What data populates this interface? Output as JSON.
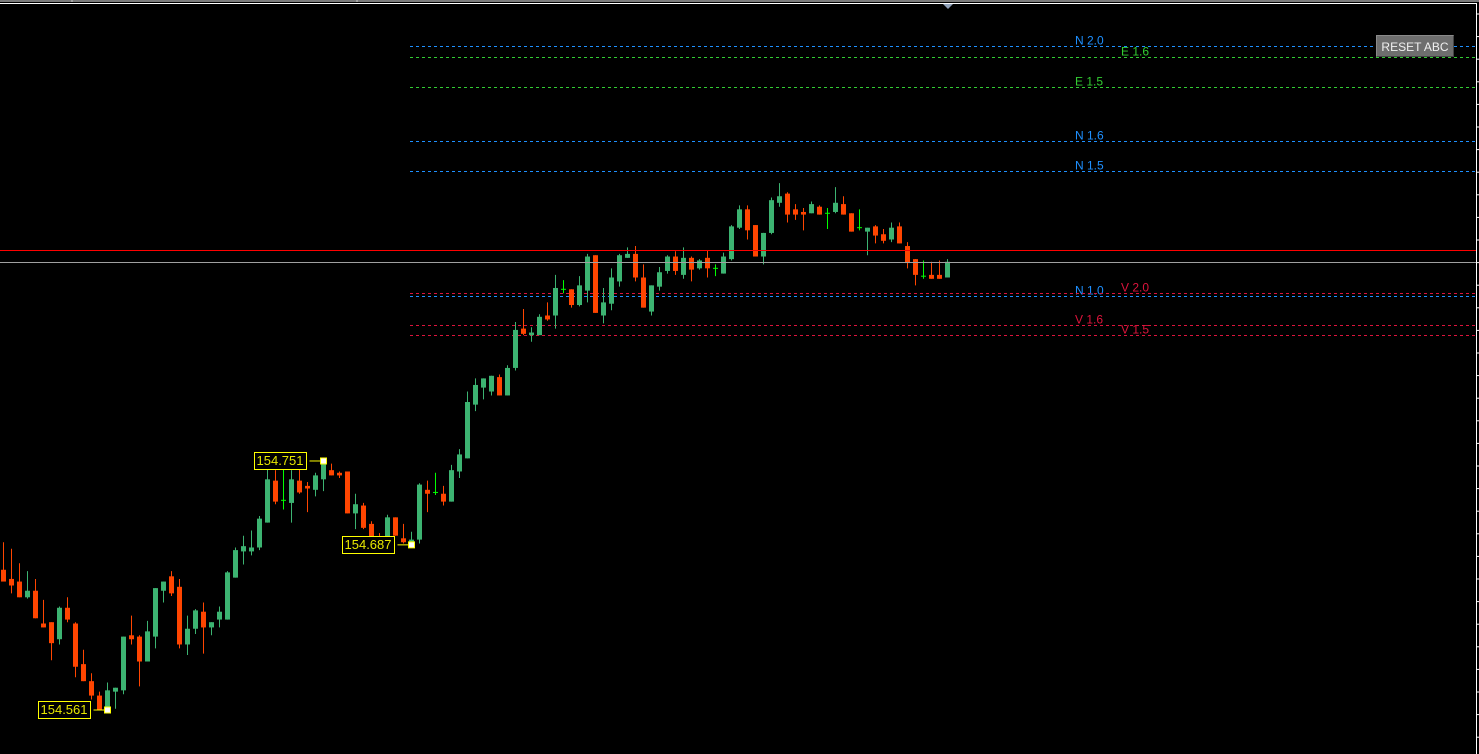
{
  "chart_data": {
    "type": "candlestick",
    "title": "",
    "xlabel": "",
    "ylabel": "",
    "ylim": [
      154.555,
      155.105
    ],
    "grid": false,
    "colors": {
      "bull": "#3cb371",
      "bear": "#ff4500",
      "doji": "#00ff00",
      "background": "#000000",
      "ask_line": "#ff0000",
      "bid_line": "#a0a0a0"
    },
    "candles_ohlc": [
      [
        154.668,
        154.689,
        154.659,
        154.659
      ],
      [
        154.661,
        154.684,
        154.65,
        154.656
      ],
      [
        154.659,
        154.673,
        154.647,
        154.647
      ],
      [
        154.647,
        154.667,
        154.646,
        154.652
      ],
      [
        154.652,
        154.661,
        154.631,
        154.631
      ],
      [
        154.627,
        154.645,
        154.624,
        154.624
      ],
      [
        154.628,
        154.628,
        154.599,
        154.612
      ],
      [
        154.615,
        154.64,
        154.611,
        154.639
      ],
      [
        154.639,
        154.647,
        154.628,
        154.63
      ],
      [
        154.627,
        154.628,
        154.586,
        154.594
      ],
      [
        154.596,
        154.607,
        154.583,
        154.583
      ],
      [
        154.583,
        154.589,
        154.569,
        154.572
      ],
      [
        154.572,
        154.575,
        154.561,
        154.561
      ],
      [
        154.563,
        154.582,
        154.561,
        154.576
      ],
      [
        154.575,
        154.578,
        154.562,
        154.578
      ],
      [
        154.576,
        154.617,
        154.573,
        154.617
      ],
      [
        154.618,
        154.633,
        154.611,
        154.615
      ],
      [
        154.617,
        154.618,
        154.579,
        154.598
      ],
      [
        154.598,
        154.629,
        154.598,
        154.621
      ],
      [
        154.617,
        154.654,
        154.608,
        154.654
      ],
      [
        154.652,
        154.659,
        154.643,
        154.659
      ],
      [
        154.663,
        154.667,
        154.648,
        154.65
      ],
      [
        154.655,
        154.661,
        154.608,
        154.611
      ],
      [
        154.611,
        154.633,
        154.603,
        154.623
      ],
      [
        154.623,
        154.638,
        154.619,
        154.637
      ],
      [
        154.636,
        154.643,
        154.604,
        154.624
      ],
      [
        154.624,
        154.628,
        154.618,
        154.628
      ],
      [
        154.63,
        154.64,
        154.624,
        154.636
      ],
      [
        154.63,
        154.667,
        154.63,
        154.666
      ],
      [
        154.662,
        154.685,
        154.662,
        154.683
      ],
      [
        154.682,
        154.694,
        154.672,
        154.686
      ],
      [
        154.682,
        154.698,
        154.679,
        154.685
      ],
      [
        154.685,
        154.709,
        154.683,
        154.707
      ],
      [
        154.704,
        154.745,
        154.704,
        154.737
      ],
      [
        154.736,
        154.744,
        154.718,
        154.72
      ],
      [
        154.721,
        154.745,
        154.714,
        154.721
      ],
      [
        154.719,
        154.744,
        154.704,
        154.737
      ],
      [
        154.736,
        154.745,
        154.726,
        154.727
      ],
      [
        154.732,
        154.735,
        154.712,
        154.73
      ],
      [
        154.729,
        154.742,
        154.724,
        154.74
      ],
      [
        154.737,
        154.751,
        154.728,
        154.75
      ],
      [
        154.744,
        154.749,
        154.74,
        154.74
      ],
      [
        154.742,
        154.743,
        154.738,
        154.74
      ],
      [
        154.743,
        154.743,
        154.711,
        154.711
      ],
      [
        154.711,
        154.726,
        154.699,
        154.718
      ],
      [
        154.717,
        154.719,
        154.699,
        154.7
      ],
      [
        154.703,
        154.705,
        154.691,
        154.691
      ],
      [
        154.693,
        154.696,
        154.689,
        154.69
      ],
      [
        154.69,
        154.71,
        154.689,
        154.708
      ],
      [
        154.708,
        154.708,
        154.694,
        154.694
      ],
      [
        154.692,
        154.703,
        154.688,
        154.689
      ],
      [
        154.688,
        154.697,
        154.687,
        154.691
      ],
      [
        154.691,
        154.734,
        154.688,
        154.733
      ],
      [
        154.729,
        154.736,
        154.712,
        154.726
      ],
      [
        154.727,
        154.742,
        154.725,
        154.727
      ],
      [
        154.726,
        154.732,
        154.717,
        154.72
      ],
      [
        154.72,
        154.748,
        154.72,
        154.744
      ],
      [
        154.743,
        154.76,
        154.738,
        154.756
      ],
      [
        154.753,
        154.804,
        154.753,
        154.796
      ],
      [
        154.794,
        154.814,
        154.789,
        154.809
      ],
      [
        154.807,
        154.814,
        154.798,
        154.814
      ],
      [
        154.804,
        154.816,
        154.801,
        154.816
      ],
      [
        154.815,
        154.817,
        154.801,
        154.801
      ],
      [
        154.801,
        154.824,
        154.801,
        154.822
      ],
      [
        154.822,
        154.857,
        154.82,
        154.851
      ],
      [
        154.852,
        154.867,
        154.847,
        154.848
      ],
      [
        154.847,
        154.853,
        154.842,
        154.849
      ],
      [
        154.847,
        154.863,
        154.847,
        154.861
      ],
      [
        154.862,
        154.872,
        154.858,
        154.859
      ],
      [
        154.862,
        154.893,
        154.852,
        154.883
      ],
      [
        154.882,
        154.889,
        154.879,
        154.882
      ],
      [
        154.882,
        154.882,
        154.868,
        154.87
      ],
      [
        154.87,
        154.892,
        154.869,
        154.885
      ],
      [
        154.881,
        154.909,
        154.872,
        154.907
      ],
      [
        154.908,
        154.908,
        154.864,
        154.864
      ],
      [
        154.862,
        154.883,
        154.856,
        154.872
      ],
      [
        154.871,
        154.898,
        154.866,
        154.891
      ],
      [
        154.888,
        154.909,
        154.884,
        154.908
      ],
      [
        154.906,
        154.914,
        154.906,
        154.909
      ],
      [
        154.909,
        154.915,
        154.888,
        154.891
      ],
      [
        154.891,
        154.901,
        154.868,
        154.868
      ],
      [
        154.865,
        154.885,
        154.862,
        154.885
      ],
      [
        154.884,
        154.899,
        154.881,
        154.895
      ],
      [
        154.896,
        154.908,
        154.894,
        154.907
      ],
      [
        154.907,
        154.911,
        154.893,
        154.896
      ],
      [
        154.893,
        154.914,
        154.89,
        154.906
      ],
      [
        154.906,
        154.907,
        154.888,
        154.897
      ],
      [
        154.898,
        154.905,
        154.897,
        154.904
      ],
      [
        154.906,
        154.912,
        154.891,
        154.898
      ],
      [
        154.898,
        154.901,
        154.892,
        154.898
      ],
      [
        154.894,
        154.91,
        154.894,
        154.907
      ],
      [
        154.905,
        154.931,
        154.904,
        154.93
      ],
      [
        154.929,
        154.946,
        154.928,
        154.943
      ],
      [
        154.943,
        154.946,
        154.92,
        154.927
      ],
      [
        154.931,
        154.931,
        154.907,
        154.907
      ],
      [
        154.907,
        154.925,
        154.901,
        154.925
      ],
      [
        154.925,
        154.952,
        154.924,
        154.95
      ],
      [
        154.948,
        154.963,
        154.945,
        154.953
      ],
      [
        154.955,
        154.956,
        154.933,
        154.939
      ],
      [
        154.943,
        154.947,
        154.935,
        154.939
      ],
      [
        154.941,
        154.944,
        154.927,
        154.939
      ],
      [
        154.94,
        154.949,
        154.94,
        154.947
      ],
      [
        154.945,
        154.946,
        154.939,
        154.939
      ],
      [
        154.94,
        154.944,
        154.928,
        154.94
      ],
      [
        154.941,
        154.96,
        154.94,
        154.948
      ],
      [
        154.947,
        154.953,
        154.939,
        154.939
      ],
      [
        154.94,
        154.94,
        154.926,
        154.926
      ],
      [
        154.929,
        154.943,
        154.927,
        154.929
      ],
      [
        154.926,
        154.929,
        154.908,
        154.929
      ],
      [
        154.93,
        154.931,
        154.917,
        154.923
      ],
      [
        154.924,
        154.928,
        154.917,
        154.919
      ],
      [
        154.92,
        154.933,
        154.918,
        154.929
      ],
      [
        154.93,
        154.933,
        154.917,
        154.917
      ],
      [
        154.915,
        154.918,
        154.898,
        154.902
      ],
      [
        154.905,
        154.905,
        154.885,
        154.893
      ],
      [
        154.892,
        154.904,
        154.89,
        154.892
      ],
      [
        154.893,
        154.903,
        154.89,
        154.89
      ],
      [
        154.893,
        154.904,
        154.89,
        154.89
      ],
      [
        154.891,
        154.905,
        154.891,
        154.903
      ]
    ],
    "ask_price": 154.912,
    "bid_price": 154.903,
    "levels": [
      {
        "label": "N 2.0",
        "price": 155.068,
        "color": "#1e90ff"
      },
      {
        "label": "E 1.6",
        "price": 155.059,
        "color": "#32cd32"
      },
      {
        "label": "E 1.5",
        "price": 155.036,
        "color": "#32cd32"
      },
      {
        "label": "N 1.6",
        "price": 154.995,
        "color": "#1e90ff"
      },
      {
        "label": "N 1.5",
        "price": 154.972,
        "color": "#1e90ff"
      },
      {
        "label": "N 1.0",
        "price": 154.877,
        "color": "#1e90ff"
      },
      {
        "label": "V 2.0",
        "price": 154.879,
        "color": "#dc143c"
      },
      {
        "label": "V 1.6",
        "price": 154.855,
        "color": "#dc143c"
      },
      {
        "label": "V 1.5",
        "price": 154.847,
        "color": "#dc143c"
      }
    ],
    "swing_points": [
      {
        "label": "154.561",
        "price": 154.561
      },
      {
        "label": "154.751",
        "price": 154.751
      },
      {
        "label": "154.687",
        "price": 154.687
      }
    ]
  },
  "controls": {
    "reset_label": "RESET ABC"
  }
}
